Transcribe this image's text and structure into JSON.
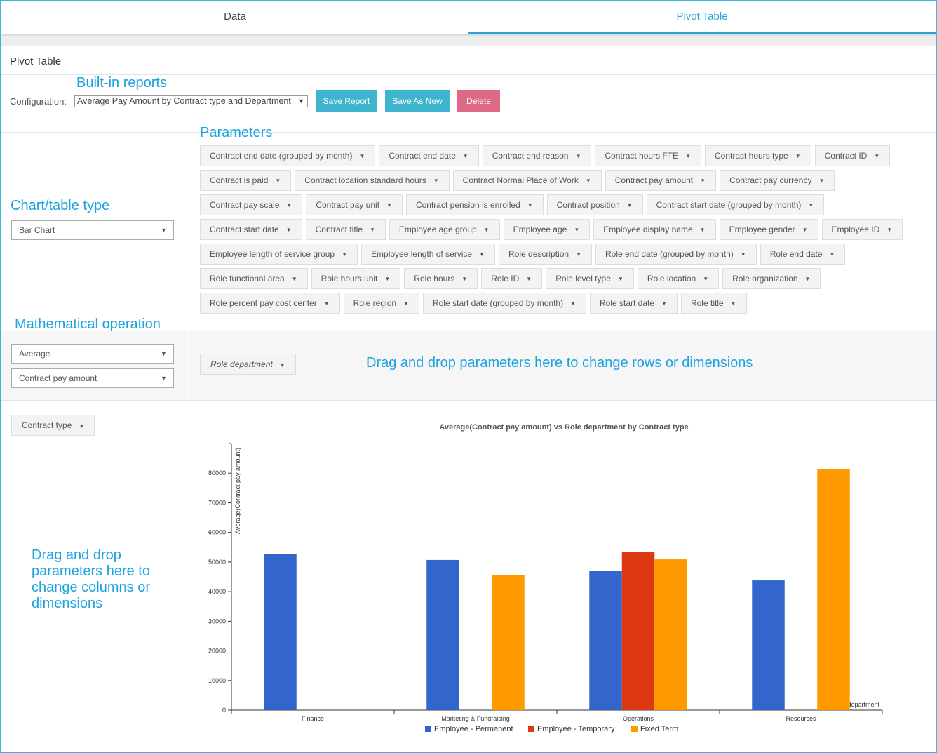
{
  "tabs": [
    {
      "label": "Data",
      "active": false
    },
    {
      "label": "Pivot Table",
      "active": true
    }
  ],
  "page_title": "Pivot Table",
  "callouts": {
    "built_in_reports": "Built-in reports",
    "parameters": "Parameters",
    "chart_table_type": "Chart/table type",
    "math_operation": "Mathematical operation",
    "rows_hint": "Drag and drop parameters here to change rows or dimensions",
    "cols_hint": "Drag and drop parameters here to change columns or dimensions"
  },
  "config": {
    "label": "Configuration:",
    "selected": "Average Pay Amount by Contract type and Department",
    "save_label": "Save Report",
    "save_as_label": "Save As New",
    "delete_label": "Delete"
  },
  "chart_type": {
    "selected": "Bar Chart"
  },
  "aggregator": {
    "selected": "Average",
    "attribute": "Contract pay amount"
  },
  "parameters": [
    "Contract end date (grouped by month)",
    "Contract end date",
    "Contract end reason",
    "Contract hours FTE",
    "Contract hours type",
    "Contract ID",
    "Contract is paid",
    "Contract location standard hours",
    "Contract Normal Place of Work",
    "Contract pay amount",
    "Contract pay currency",
    "Contract pay scale",
    "Contract pay unit",
    "Contract pension is enrolled",
    "Contract position",
    "Contract start date (grouped by month)",
    "Contract start date",
    "Contract title",
    "Employee age group",
    "Employee age",
    "Employee display name",
    "Employee gender",
    "Employee ID",
    "Employee length of service group",
    "Employee length of service",
    "Role description",
    "Role end date (grouped by month)",
    "Role end date",
    "Role functional area",
    "Role hours unit",
    "Role hours",
    "Role ID",
    "Role level type",
    "Role location",
    "Role organization",
    "Role percent pay cost center",
    "Role region",
    "Role start date (grouped by month)",
    "Role start date",
    "Role title"
  ],
  "row_param": "Role department",
  "col_param": "Contract type",
  "colors": {
    "accent": "#29a4d8",
    "button": "#3fb4cf",
    "delete": "#dc6a84",
    "series": [
      "#3366cc",
      "#dc3912",
      "#ff9900"
    ]
  },
  "chart_data": {
    "type": "bar",
    "title": "Average(Contract pay amount) vs Role department by Contract type",
    "xlabel": "Role department",
    "ylabel": "Average(Contract pay amount)",
    "ylim": [
      0,
      90000
    ],
    "yticks": [
      0,
      10000,
      20000,
      30000,
      40000,
      50000,
      60000,
      70000,
      80000
    ],
    "categories": [
      "Finance",
      "Marketing & Fundraising",
      "Operations",
      "Resources"
    ],
    "series": [
      {
        "name": "Employee - Permanent",
        "values": [
          52800,
          50700,
          47100,
          43800
        ]
      },
      {
        "name": "Employee - Temporary",
        "values": [
          null,
          null,
          53500,
          null
        ]
      },
      {
        "name": "Fixed Term",
        "values": [
          null,
          45500,
          50900,
          81300
        ]
      }
    ],
    "legend": "bottom"
  }
}
